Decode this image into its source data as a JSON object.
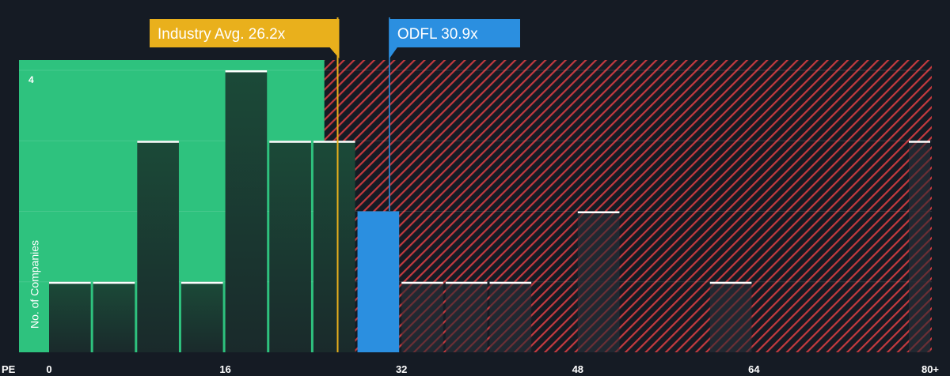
{
  "colors": {
    "background": "#151b24",
    "fair_zone": "#2ec27e",
    "overvalued_hatch": "#c43a3f",
    "bar_dark": "#1e3f32",
    "bar_hatched": "#232a33",
    "bar_top": "#ffffff",
    "highlight_bar": "#2b8fe0",
    "industry_marker": "#e9b01c"
  },
  "callouts": {
    "industry": {
      "label": "Industry Avg. 26.2x",
      "value": 26.2
    },
    "company": {
      "label": "ODFL 30.9x",
      "value": 30.9
    }
  },
  "chart_data": {
    "type": "bar",
    "xlabel": "PE",
    "ylabel": "No. of Companies",
    "xlim": [
      0,
      80
    ],
    "ylim": [
      0,
      4
    ],
    "x_ticks": [
      {
        "value": 0,
        "label": "0"
      },
      {
        "value": 16,
        "label": "16"
      },
      {
        "value": 32,
        "label": "32"
      },
      {
        "value": 48,
        "label": "48"
      },
      {
        "value": 64,
        "label": "64"
      },
      {
        "value": 80,
        "label": "80+"
      }
    ],
    "y_ticks": [
      {
        "value": 4,
        "label": "4"
      }
    ],
    "fair_value_boundary": 25,
    "bin_width": 4,
    "bins": [
      {
        "x": 0,
        "count": 1
      },
      {
        "x": 4,
        "count": 1
      },
      {
        "x": 8,
        "count": 3
      },
      {
        "x": 12,
        "count": 1
      },
      {
        "x": 16,
        "count": 4
      },
      {
        "x": 20,
        "count": 3
      },
      {
        "x": 24,
        "count": 3
      },
      {
        "x": 28,
        "count": 2,
        "highlight": true
      },
      {
        "x": 32,
        "count": 1
      },
      {
        "x": 36,
        "count": 1
      },
      {
        "x": 40,
        "count": 1
      },
      {
        "x": 48,
        "count": 2
      },
      {
        "x": 60,
        "count": 1
      },
      {
        "x": 80,
        "count": 3
      }
    ]
  }
}
